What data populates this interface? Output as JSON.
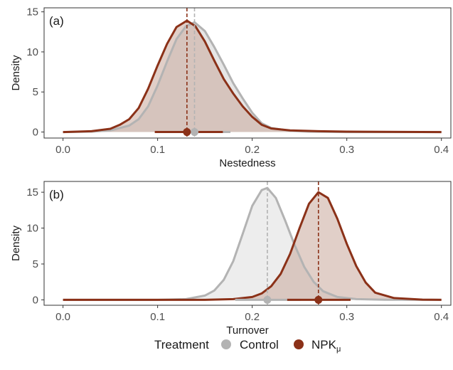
{
  "chart_data": [
    {
      "type": "area",
      "panel_label": "(a)",
      "xlabel": "Nestedness",
      "ylabel": "Density",
      "xlim": [
        -0.02,
        0.41
      ],
      "ylim": [
        -0.75,
        15.5
      ],
      "x_ticks": [
        0.0,
        0.1,
        0.2,
        0.3,
        0.4
      ],
      "x_tick_labels": [
        "0.0",
        "0.1",
        "0.2",
        "0.3",
        "0.4"
      ],
      "y_ticks": [
        0,
        5,
        10,
        15
      ],
      "y_tick_labels": [
        "0",
        "5",
        "10",
        "15"
      ],
      "grid": false,
      "series": [
        {
          "name": "Control",
          "color": "#b3b3b3",
          "fill": "#dcdcdc",
          "mean": 0.139,
          "interval": [
            0.103,
            0.177
          ],
          "x": [
            0.0,
            0.03,
            0.05,
            0.07,
            0.08,
            0.09,
            0.1,
            0.11,
            0.12,
            0.13,
            0.139,
            0.15,
            0.16,
            0.17,
            0.18,
            0.19,
            0.2,
            0.21,
            0.22,
            0.24,
            0.26,
            0.3,
            0.4
          ],
          "y": [
            0.0,
            0.05,
            0.2,
            0.8,
            1.6,
            3.2,
            5.8,
            8.8,
            11.6,
            13.2,
            13.7,
            12.6,
            10.6,
            8.4,
            6.1,
            4.2,
            2.4,
            1.1,
            0.5,
            0.15,
            0.05,
            0.0,
            0.0
          ]
        },
        {
          "name": "NPK",
          "color": "#8b3118",
          "fill": "#c9a79b",
          "mean": 0.131,
          "interval": [
            0.097,
            0.169
          ],
          "x": [
            0.0,
            0.03,
            0.05,
            0.06,
            0.07,
            0.08,
            0.09,
            0.1,
            0.11,
            0.12,
            0.131,
            0.14,
            0.15,
            0.16,
            0.17,
            0.18,
            0.19,
            0.2,
            0.21,
            0.22,
            0.24,
            0.27,
            0.3,
            0.4
          ],
          "y": [
            0.0,
            0.1,
            0.4,
            0.9,
            1.6,
            3.0,
            5.4,
            8.3,
            11.0,
            13.1,
            13.9,
            13.2,
            11.3,
            8.9,
            6.6,
            4.8,
            3.2,
            1.9,
            0.9,
            0.45,
            0.2,
            0.1,
            0.05,
            0.0
          ]
        }
      ]
    },
    {
      "type": "area",
      "panel_label": "(b)",
      "xlabel": "Turnover",
      "ylabel": "Density",
      "xlim": [
        -0.02,
        0.41
      ],
      "ylim": [
        -0.75,
        16.5
      ],
      "x_ticks": [
        0.0,
        0.1,
        0.2,
        0.3,
        0.4
      ],
      "x_tick_labels": [
        "0.0",
        "0.1",
        "0.2",
        "0.3",
        "0.4"
      ],
      "y_ticks": [
        0,
        5,
        10,
        15
      ],
      "y_tick_labels": [
        "0",
        "5",
        "10",
        "15"
      ],
      "grid": false,
      "series": [
        {
          "name": "Control",
          "color": "#b3b3b3",
          "fill": "#e6e6e6",
          "mean": 0.216,
          "interval": [
            0.182,
            0.251
          ],
          "x": [
            0.0,
            0.1,
            0.13,
            0.15,
            0.16,
            0.17,
            0.18,
            0.19,
            0.2,
            0.21,
            0.216,
            0.225,
            0.235,
            0.245,
            0.255,
            0.265,
            0.275,
            0.29,
            0.31,
            0.34,
            0.4
          ],
          "y": [
            0.0,
            0.0,
            0.1,
            0.6,
            1.3,
            2.8,
            5.4,
            9.2,
            13.1,
            15.3,
            15.6,
            14.2,
            11.0,
            7.6,
            4.6,
            2.5,
            1.2,
            0.4,
            0.1,
            0.02,
            0.0
          ]
        },
        {
          "name": "NPK",
          "color": "#8b3118",
          "fill": "#c9a79b",
          "mean": 0.27,
          "interval": [
            0.237,
            0.304
          ],
          "x": [
            0.0,
            0.15,
            0.18,
            0.2,
            0.21,
            0.22,
            0.23,
            0.24,
            0.25,
            0.26,
            0.27,
            0.28,
            0.29,
            0.3,
            0.31,
            0.32,
            0.33,
            0.35,
            0.38,
            0.4
          ],
          "y": [
            0.0,
            0.0,
            0.1,
            0.4,
            0.9,
            1.9,
            3.6,
            6.4,
            10.0,
            13.4,
            15.0,
            14.2,
            11.3,
            7.8,
            4.7,
            2.4,
            1.0,
            0.25,
            0.03,
            0.0
          ]
        }
      ]
    }
  ],
  "legend": {
    "title": "Treatment",
    "position": "bottom",
    "items": [
      {
        "label": "Control",
        "subscript": "",
        "color": "#b3b3b3"
      },
      {
        "label": "NPK",
        "subscript": "μ",
        "color": "#8b3118"
      }
    ]
  }
}
